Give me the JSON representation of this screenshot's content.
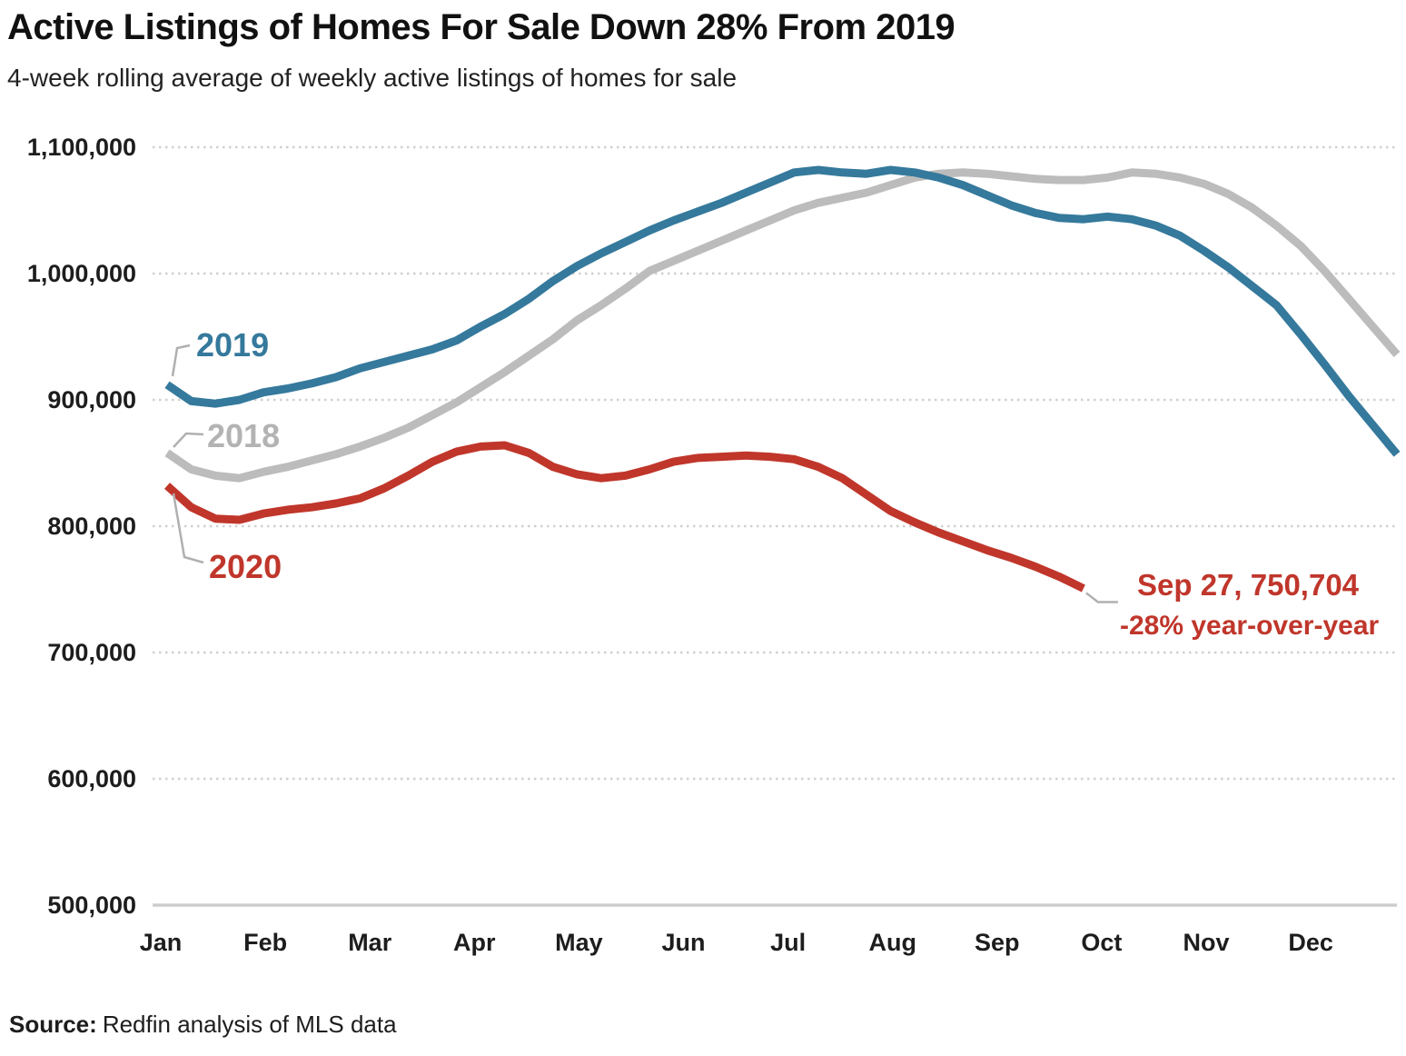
{
  "header": {
    "title": "Active Listings of Homes For Sale Down 28% From 2019",
    "subtitle": "4-week rolling average of weekly active listings of homes for sale"
  },
  "source": {
    "label": "Source:",
    "text": "Redfin analysis of MLS data"
  },
  "colors": {
    "blue": "#35799c",
    "gray": "#bcbcbc",
    "gray_label": "#b3b3b3",
    "red": "#c0362b",
    "grid": "#d0d0d0",
    "axis": "#cdcdcd",
    "leader": "#b0b0b0",
    "text": "#1d1d1d"
  },
  "chart_data": {
    "type": "line",
    "title": "Active Listings of Homes For Sale Down 28% From 2019",
    "subtitle": "4-week rolling average of weekly active listings of homes for sale",
    "xlabel": "",
    "ylabel": "",
    "x_unit": "weekly points from early January through late December",
    "months": [
      "Jan",
      "Feb",
      "Mar",
      "Apr",
      "May",
      "Jun",
      "Jul",
      "Aug",
      "Sep",
      "Oct",
      "Nov",
      "Dec"
    ],
    "y_tick_labels": [
      "1,100,000",
      "1,000,000",
      "900,000",
      "800,000",
      "700,000",
      "600,000",
      "500,000"
    ],
    "y_tick_values": [
      1100000,
      1000000,
      900000,
      800000,
      700000,
      600000,
      500000
    ],
    "ylim": [
      500000,
      1100000
    ],
    "grid": "dotted horizontal gridlines, solid baseline at 500,000",
    "legend_position": "inline labels at left side of lines",
    "series": [
      {
        "name": "2018",
        "color": "#bcbcbc",
        "values": [
          858000,
          845000,
          840000,
          838000,
          843000,
          847000,
          852000,
          857000,
          863000,
          870000,
          878000,
          888000,
          898000,
          910000,
          922000,
          935000,
          948000,
          963000,
          975000,
          988000,
          1002000,
          1010000,
          1018000,
          1026000,
          1034000,
          1042000,
          1050000,
          1056000,
          1060000,
          1064000,
          1070000,
          1076000,
          1079000,
          1080000,
          1079000,
          1077000,
          1075000,
          1074000,
          1074000,
          1076000,
          1080000,
          1079000,
          1076000,
          1071000,
          1063000,
          1052000,
          1038000,
          1022000,
          1002000,
          980000,
          958000,
          936000
        ]
      },
      {
        "name": "2019",
        "color": "#35799c",
        "values": [
          912000,
          899000,
          897000,
          900000,
          906000,
          909000,
          913000,
          918000,
          925000,
          930000,
          935000,
          940000,
          947000,
          958000,
          968000,
          980000,
          994000,
          1006000,
          1016000,
          1025000,
          1034000,
          1042000,
          1049000,
          1056000,
          1064000,
          1072000,
          1080000,
          1082000,
          1080000,
          1079000,
          1082000,
          1080000,
          1076000,
          1070000,
          1062000,
          1054000,
          1048000,
          1044000,
          1043000,
          1045000,
          1043000,
          1038000,
          1030000,
          1018000,
          1005000,
          990000,
          975000,
          952000,
          928000,
          903000,
          880000,
          857000
        ]
      },
      {
        "name": "2020",
        "color": "#c0362b",
        "values": [
          832000,
          815000,
          806000,
          805000,
          810000,
          813000,
          815000,
          818000,
          822000,
          830000,
          840000,
          851000,
          859000,
          863000,
          864000,
          858000,
          847000,
          841000,
          838000,
          840000,
          845000,
          851000,
          854000,
          855000,
          856000,
          855000,
          853000,
          847000,
          838000,
          825000,
          812000,
          803000,
          795000,
          788000,
          781000,
          775000,
          768000,
          760000,
          750704
        ],
        "last_point_date": "Sep 27",
        "last_point_value": 750704
      }
    ],
    "annotation": {
      "line1": "Sep 27, 750,704",
      "line2": "-28% year-over-year"
    }
  }
}
